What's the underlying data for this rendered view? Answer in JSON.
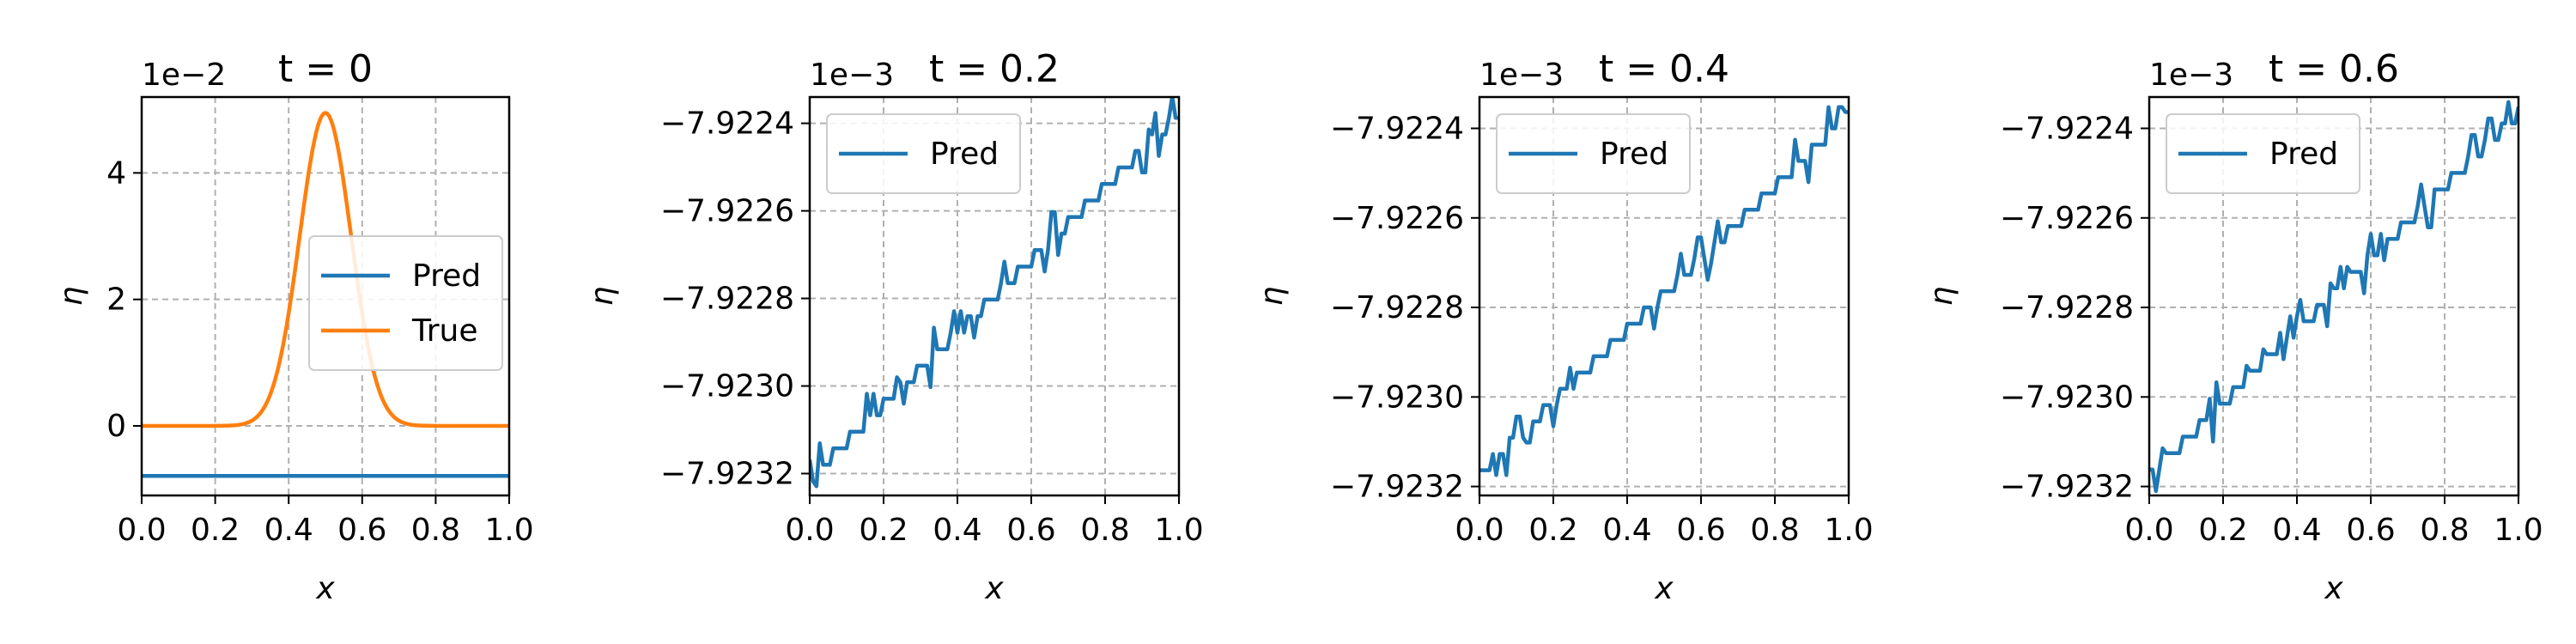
{
  "colors": {
    "pred": "#1f77b4",
    "true": "#ff7f0e"
  },
  "chart_data": [
    {
      "type": "line",
      "title": "t = 0",
      "xlabel": "x",
      "ylabel": "η",
      "offset_label": "1e−2",
      "xlim": [
        0,
        1
      ],
      "ylim": [
        -1.1,
        5.2
      ],
      "xticks": [
        0.0,
        0.2,
        0.4,
        0.6,
        0.8,
        1.0
      ],
      "xtick_labels": [
        "0.0",
        "0.2",
        "0.4",
        "0.6",
        "0.8",
        "1.0"
      ],
      "yticks": [
        0,
        2,
        4
      ],
      "ytick_labels": [
        "0",
        "2",
        "4"
      ],
      "grid": true,
      "legend": "center-right",
      "series": [
        {
          "name": "Pred",
          "color": "#1f77b4",
          "kind": "flat",
          "value": -0.79
        },
        {
          "name": "True",
          "color": "#ff7f0e",
          "kind": "gaussian",
          "amplitude": 4.95,
          "center": 0.5,
          "width": 0.07
        }
      ]
    },
    {
      "type": "line",
      "title": "t = 0.2",
      "xlabel": "x",
      "ylabel": "η",
      "offset_label": "1e−3",
      "xlim": [
        0,
        1
      ],
      "ylim": [
        -7.92325,
        -7.92234
      ],
      "xticks": [
        0.0,
        0.2,
        0.4,
        0.6,
        0.8,
        1.0
      ],
      "xtick_labels": [
        "0.0",
        "0.2",
        "0.4",
        "0.6",
        "0.8",
        "1.0"
      ],
      "yticks": [
        -7.9232,
        -7.923,
        -7.9228,
        -7.9226,
        -7.9224
      ],
      "ytick_labels": [
        "−7.9232",
        "−7.9230",
        "−7.9228",
        "−7.9226",
        "−7.9224"
      ],
      "grid": true,
      "legend": "top-left",
      "series": [
        {
          "name": "Pred",
          "color": "#1f77b4",
          "kind": "stepped",
          "start": -7.92321,
          "end": -7.92238
        }
      ]
    },
    {
      "type": "line",
      "title": "t = 0.4",
      "xlabel": "x",
      "ylabel": "η",
      "offset_label": "1e−3",
      "xlim": [
        0,
        1
      ],
      "ylim": [
        -7.92322,
        -7.92233
      ],
      "xticks": [
        0.0,
        0.2,
        0.4,
        0.6,
        0.8,
        1.0
      ],
      "xtick_labels": [
        "0.0",
        "0.2",
        "0.4",
        "0.6",
        "0.8",
        "1.0"
      ],
      "yticks": [
        -7.9232,
        -7.923,
        -7.9228,
        -7.9226,
        -7.9224
      ],
      "ytick_labels": [
        "−7.9232",
        "−7.9230",
        "−7.9228",
        "−7.9226",
        "−7.9224"
      ],
      "grid": true,
      "legend": "top-left",
      "series": [
        {
          "name": "Pred",
          "color": "#1f77b4",
          "kind": "stepped",
          "start": -7.92317,
          "end": -7.92237
        }
      ]
    },
    {
      "type": "line",
      "title": "t = 0.6",
      "xlabel": "x",
      "ylabel": "η",
      "offset_label": "1e−3",
      "xlim": [
        0,
        1
      ],
      "ylim": [
        -7.92322,
        -7.92233
      ],
      "xticks": [
        0.0,
        0.2,
        0.4,
        0.6,
        0.8,
        1.0
      ],
      "xtick_labels": [
        "0.0",
        "0.2",
        "0.4",
        "0.6",
        "0.8",
        "1.0"
      ],
      "yticks": [
        -7.9232,
        -7.923,
        -7.9228,
        -7.9226,
        -7.9224
      ],
      "ytick_labels": [
        "−7.9232",
        "−7.9230",
        "−7.9228",
        "−7.9226",
        "−7.9224"
      ],
      "grid": true,
      "legend": "top-left",
      "series": [
        {
          "name": "Pred",
          "color": "#1f77b4",
          "kind": "stepped",
          "start": -7.92318,
          "end": -7.92237
        }
      ]
    }
  ]
}
